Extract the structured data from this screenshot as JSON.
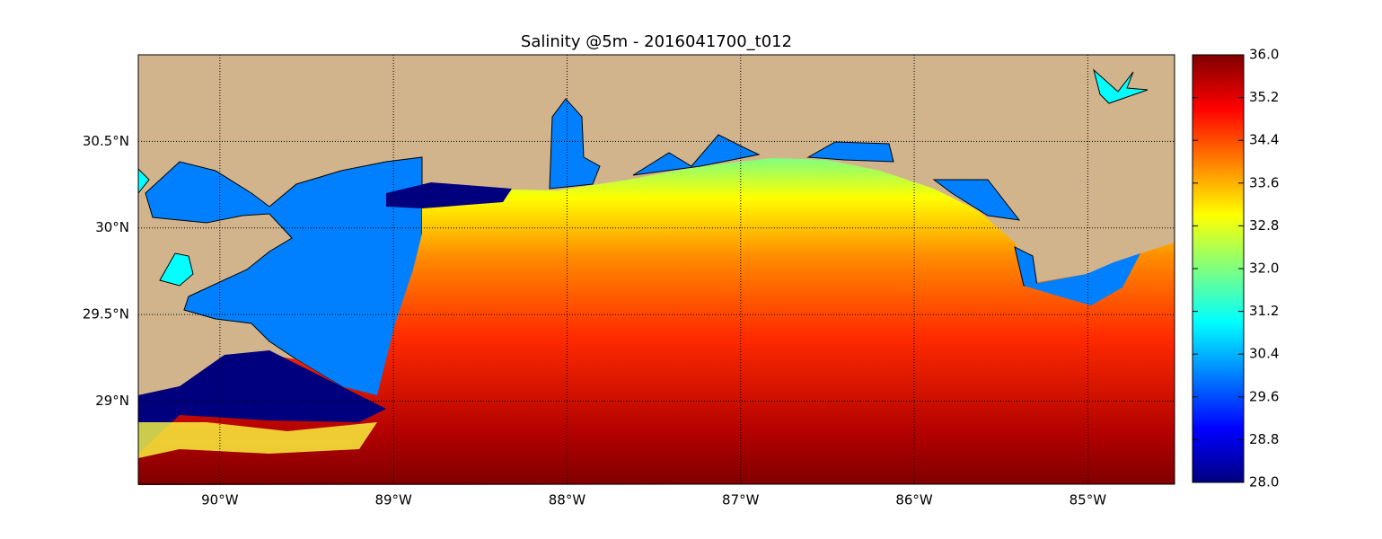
{
  "chart_data": {
    "type": "map",
    "title": "Salinity @5m - 2016041700_t012",
    "xlim": [
      -90.47,
      -84.5
    ],
    "ylim": [
      28.52,
      31.0
    ],
    "xticks": [
      {
        "value": -90,
        "label": "90°W"
      },
      {
        "value": -89,
        "label": "89°W"
      },
      {
        "value": -88,
        "label": "88°W"
      },
      {
        "value": -87,
        "label": "87°W"
      },
      {
        "value": -86,
        "label": "86°W"
      },
      {
        "value": -85,
        "label": "85°W"
      }
    ],
    "yticks": [
      {
        "value": 29,
        "label": "29°N"
      },
      {
        "value": 29.5,
        "label": "29.5°N"
      },
      {
        "value": 30,
        "label": "30°N"
      },
      {
        "value": 30.5,
        "label": "30.5°N"
      }
    ],
    "grid": true,
    "colorbar": {
      "lim": [
        28,
        36
      ],
      "colormap": [
        "#00007f",
        "#0000ff",
        "#007fff",
        "#00ffff",
        "#7fff7f",
        "#ffff00",
        "#ff7f00",
        "#ff0000",
        "#7f0000"
      ],
      "ticks": [
        {
          "value": 28,
          "label": "28.0"
        },
        28.8,
        29.6,
        30.4,
        31.2,
        {
          "value": 32,
          "label": "32.0"
        },
        32.8,
        33.6,
        34.4,
        35.2,
        {
          "value": 36,
          "label": "36.0"
        }
      ]
    }
  }
}
